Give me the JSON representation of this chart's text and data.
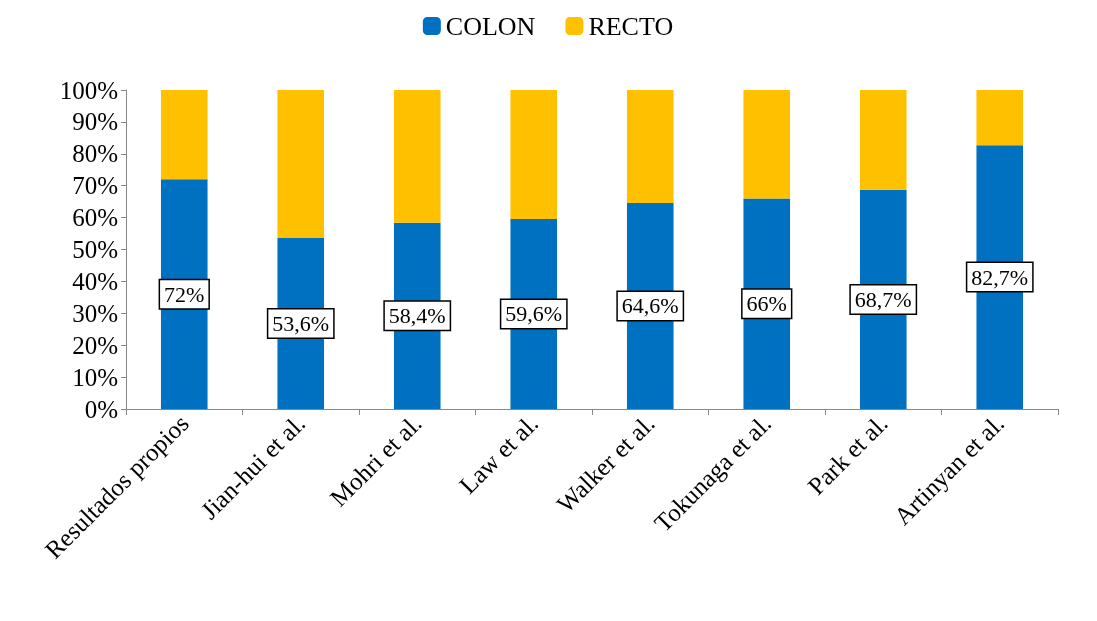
{
  "chart_data": {
    "type": "bar",
    "stacked": true,
    "legend": "top",
    "grid": false,
    "categories": [
      "Resultados propios",
      "Jian-hui et al.",
      "Mohri et al.",
      "Law et al.",
      "Walker et al.",
      "Tokunaga et al.",
      "Park et al.",
      "Artinyan et al."
    ],
    "series": [
      {
        "name": "COLON",
        "color": "#0070c0",
        "values": [
          72,
          53.6,
          58.4,
          59.6,
          64.6,
          66,
          68.7,
          82.7
        ],
        "value_labels": [
          "72%",
          "53,6%",
          "58,4%",
          "59,6%",
          "64,6%",
          "66%",
          "68,7%",
          "82,7%"
        ]
      },
      {
        "name": "RECTO",
        "color": "#ffc000",
        "values": [
          28,
          46.4,
          41.6,
          40.4,
          35.4,
          34,
          31.3,
          17.3
        ]
      }
    ],
    "ylim": [
      0,
      100
    ],
    "yticks": [
      {
        "value": 0,
        "label": "0%"
      },
      {
        "value": 10,
        "label": "10%"
      },
      {
        "value": 20,
        "label": "20%"
      },
      {
        "value": 30,
        "label": "30%"
      },
      {
        "value": 40,
        "label": "40%"
      },
      {
        "value": 50,
        "label": "50%"
      },
      {
        "value": 60,
        "label": "60%"
      },
      {
        "value": 70,
        "label": "70%"
      },
      {
        "value": 80,
        "label": "80%"
      },
      {
        "value": 90,
        "label": "90%"
      },
      {
        "value": 100,
        "label": "100%"
      }
    ]
  }
}
